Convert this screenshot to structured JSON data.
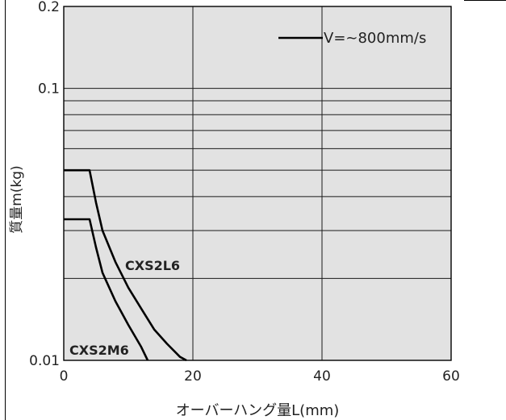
{
  "chart_data": {
    "type": "line",
    "xlabel": "オーバーハング量L(mm)",
    "ylabel": "質量m(kg)",
    "xlim": [
      0,
      60
    ],
    "ylim": [
      0.01,
      0.2
    ],
    "yscale": "log",
    "x_ticks": [
      "0",
      "20",
      "40",
      "60"
    ],
    "y_ticks": [
      "0.01",
      "0.1",
      "0.2"
    ],
    "grid": true,
    "legend": {
      "label": "V=~800mm/s",
      "position": "top-right"
    },
    "series": [
      {
        "name": "CXS2L6",
        "points": [
          [
            0,
            0.05
          ],
          [
            4,
            0.05
          ],
          [
            5,
            0.038
          ],
          [
            6,
            0.03
          ],
          [
            8,
            0.023
          ],
          [
            10,
            0.0185
          ],
          [
            12,
            0.0155
          ],
          [
            14,
            0.013
          ],
          [
            16,
            0.0115
          ],
          [
            18,
            0.0103
          ],
          [
            19,
            0.01
          ]
        ]
      },
      {
        "name": "CXS2M6",
        "points": [
          [
            0,
            0.033
          ],
          [
            4,
            0.033
          ],
          [
            5,
            0.026
          ],
          [
            6,
            0.021
          ],
          [
            8,
            0.0165
          ],
          [
            10,
            0.0135
          ],
          [
            12,
            0.0112
          ],
          [
            13,
            0.01
          ]
        ]
      }
    ]
  },
  "colors": {
    "plot_bg": "#e2e2e2",
    "grid": "#1a1a1a",
    "line": "#000000"
  }
}
